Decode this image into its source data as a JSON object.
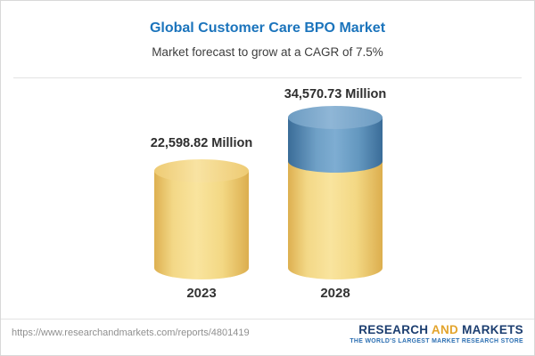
{
  "header": {
    "title": "Global Customer Care BPO Market",
    "subtitle": "Market forecast to grow at a CAGR of 7.5%"
  },
  "chart_data": {
    "type": "bar",
    "categories": [
      "2023",
      "2028"
    ],
    "values": [
      22598.82,
      34570.73
    ],
    "value_labels": [
      "22,598.82 Million",
      "34,570.73 Million"
    ],
    "title": "Global Customer Care BPO Market",
    "subtitle": "Market forecast to grow at a CAGR of 7.5%",
    "xlabel": "",
    "ylabel": "",
    "legend": "none",
    "grid": false,
    "bar_style": "3d-cylinder",
    "colors": {
      "bar_2023": "#f2d47e",
      "bar_2028_growth_segment": "#5b8db9",
      "bar_2028_base_segment": "#f2d47e",
      "title_text": "#1b74bc"
    }
  },
  "footer": {
    "url": "https://www.researchandmarkets.com/reports/4801419",
    "logo": {
      "research": "RESEARCH",
      "and": "AND",
      "markets": "MARKETS",
      "tagline": "THE WORLD'S LARGEST MARKET RESEARCH STORE"
    }
  }
}
